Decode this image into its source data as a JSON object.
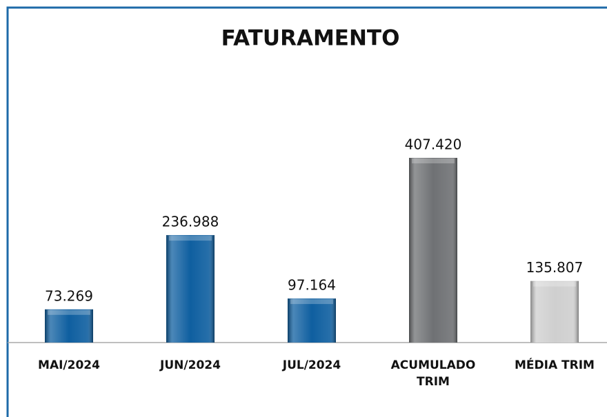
{
  "chart_data": {
    "type": "bar",
    "title": "FATURAMENTO",
    "categories": [
      "MAI/2024",
      "JUN/2024",
      "JUL/2024",
      "ACUMULADO TRIM",
      "MÉDIA TRIM"
    ],
    "values": [
      73269,
      236988,
      97164,
      407420,
      135807
    ],
    "value_labels": [
      "73.269",
      "236.988",
      "97.164",
      "407.420",
      "135.807"
    ],
    "colors": [
      "#0f5fa0",
      "#0f5fa0",
      "#0f5fa0",
      "#6f7174",
      "#cfcfcf"
    ]
  }
}
